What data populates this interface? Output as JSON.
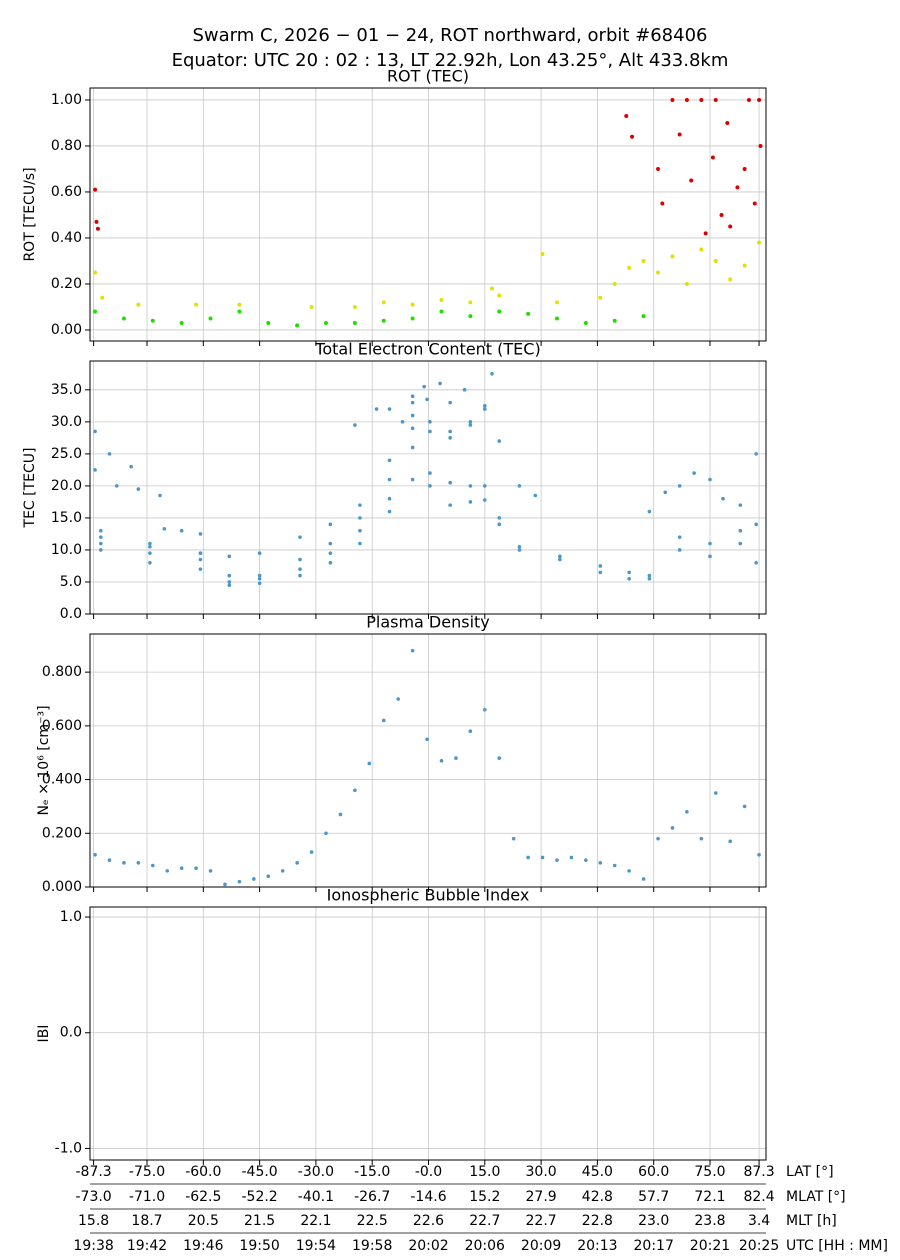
{
  "title": [
    "Swarm C,  2026 − 01 − 24,  ROT northward,  orbit #68406",
    "Equator:  UTC 20 : 02 : 13,  LT 22.92h,  Lon 43.25°,  Alt 433.8km"
  ],
  "x_axis": {
    "xlim": [
      1178.65,
      1225.48
    ],
    "xticks": [
      {
        "value": 1178.9,
        "label": "19:38"
      },
      {
        "value": 1182.6,
        "label": "19:42"
      },
      {
        "value": 1186.5,
        "label": "19:46"
      },
      {
        "value": 1190.4,
        "label": "19:50"
      },
      {
        "value": 1194.3,
        "label": "19:54"
      },
      {
        "value": 1198.2,
        "label": "19:58"
      },
      {
        "value": 1202.1,
        "label": "20:02"
      },
      {
        "value": 1206.0,
        "label": "20:06"
      },
      {
        "value": 1209.9,
        "label": "20:09"
      },
      {
        "value": 1213.8,
        "label": "20:13"
      },
      {
        "value": 1217.7,
        "label": "20:17"
      },
      {
        "value": 1221.6,
        "label": "20:21"
      },
      {
        "value": 1225.0,
        "label": "20:25"
      }
    ],
    "lat": [
      "-87.3",
      "-75.0",
      "-60.0",
      "-45.0",
      "-30.0",
      "-15.0",
      "-0.0",
      "15.0",
      "30.0",
      "45.0",
      "60.0",
      "75.0",
      "87.3"
    ],
    "mlat": [
      "-73.0",
      "-71.0",
      "-62.5",
      "-52.2",
      "-40.1",
      "-26.7",
      "-14.6",
      "15.2",
      "27.9",
      "42.8",
      "57.7",
      "72.1",
      "82.4"
    ],
    "mlt": [
      "15.8",
      "18.7",
      "20.5",
      "21.5",
      "22.1",
      "22.5",
      "22.6",
      "22.7",
      "22.7",
      "22.8",
      "23.0",
      "23.8",
      "3.4"
    ],
    "row_labels": [
      "LAT [°]",
      "MLAT [°]",
      "MLT [h]",
      "UTC [HH : MM]"
    ]
  },
  "chart_data": [
    {
      "type": "scatter",
      "title": "ROT (TEC)",
      "ylabel": "ROT [TECU/s]",
      "grid": true,
      "ylim": [
        -0.048,
        1.052
      ],
      "yticks": [
        {
          "value": 0,
          "label": "0.00"
        },
        {
          "value": 0.2,
          "label": "0.20"
        },
        {
          "value": 0.4,
          "label": "0.40"
        },
        {
          "value": 0.6,
          "label": "0.60"
        },
        {
          "value": 0.8,
          "label": "0.80"
        },
        {
          "value": 1,
          "label": "1.00"
        }
      ],
      "series": [
        {
          "color": "#22dd00",
          "x": [
            1179,
            1181,
            1183,
            1185,
            1187,
            1189,
            1191,
            1193,
            1195,
            1197,
            1199,
            1201,
            1203,
            1205,
            1207,
            1209,
            1211,
            1213,
            1215,
            1217
          ],
          "values": [
            0.08,
            0.05,
            0.04,
            0.03,
            0.05,
            0.08,
            0.03,
            0.02,
            0.03,
            0.03,
            0.04,
            0.05,
            0.08,
            0.06,
            0.08,
            0.07,
            0.05,
            0.03,
            0.04,
            0.06
          ]
        },
        {
          "color": "#e6e000",
          "x": [
            1179,
            1179.5,
            1182,
            1186,
            1189,
            1194,
            1197,
            1199,
            1201,
            1203,
            1205,
            1206.5,
            1207,
            1210,
            1211,
            1214,
            1215,
            1216,
            1217,
            1218,
            1219,
            1220,
            1221,
            1222,
            1223,
            1224,
            1225
          ],
          "values": [
            0.25,
            0.14,
            0.11,
            0.11,
            0.11,
            0.1,
            0.1,
            0.12,
            0.11,
            0.13,
            0.12,
            0.18,
            0.15,
            0.33,
            0.12,
            0.14,
            0.2,
            0.27,
            0.3,
            0.25,
            0.32,
            0.2,
            0.35,
            0.3,
            0.22,
            0.28,
            0.38
          ]
        },
        {
          "color": "#dd0000",
          "x": [
            1179,
            1179.2,
            1179.1,
            1215.8,
            1216.2,
            1218,
            1218.3,
            1219,
            1219.5,
            1220,
            1220.3,
            1221,
            1221.3,
            1221.8,
            1222,
            1222.4,
            1222.8,
            1223,
            1223.5,
            1224,
            1224.3,
            1224.7,
            1225,
            1225.1
          ],
          "values": [
            0.61,
            0.44,
            0.47,
            0.93,
            0.84,
            0.7,
            0.55,
            1.0,
            0.85,
            1.0,
            0.65,
            1.0,
            0.42,
            0.75,
            1.0,
            0.5,
            0.9,
            0.45,
            0.62,
            0.7,
            1.0,
            0.55,
            1.0,
            0.8
          ]
        }
      ]
    },
    {
      "type": "scatter",
      "title": "Total Electron Content (TEC)",
      "ylabel": "TEC [TECU]",
      "grid": true,
      "ylim": [
        0,
        39.5
      ],
      "yticks": [
        {
          "value": 0,
          "label": "0.0"
        },
        {
          "value": 5,
          "label": "5.0"
        },
        {
          "value": 10,
          "label": "10.0"
        },
        {
          "value": 15,
          "label": "15.0"
        },
        {
          "value": 20,
          "label": "20.0"
        },
        {
          "value": 25,
          "label": "25.0"
        },
        {
          "value": 30,
          "label": "30.0"
        },
        {
          "value": 35,
          "label": "35.0"
        }
      ],
      "series": [
        {
          "color": "#4a97c9",
          "x": [
            1179,
            1180,
            1181.5
          ],
          "values": [
            28.5,
            25,
            23
          ]
        },
        {
          "color": "#4a97c9",
          "x": [
            1179,
            1180.5,
            1182,
            1183.5
          ],
          "values": [
            22.5,
            20,
            19.5,
            18.5
          ]
        },
        {
          "color": "#4a97c9",
          "x": [
            1179.4,
            1182.8,
            1186.3,
            1188.3,
            1190.4,
            1193.2,
            1195.3,
            1197.35,
            1199.4,
            1201,
            1202.2,
            1203.6,
            1205,
            1206,
            1207,
            1208.4,
            1211.2,
            1214,
            1216,
            1217.4,
            1219.5,
            1221.6,
            1223.7,
            1224.8
          ],
          "values": [
            10,
            8,
            7,
            4.5,
            4.8,
            6,
            8,
            11,
            16,
            21,
            20,
            17,
            17.5,
            17.8,
            14,
            10,
            8.5,
            6.5,
            5.5,
            5.5,
            10,
            9,
            11,
            8
          ]
        },
        {
          "color": "#4a97c9",
          "x": [
            1179.4,
            1182.8,
            1186.3,
            1188.3,
            1190.4,
            1193.2,
            1195.3,
            1197.35,
            1199.4,
            1201,
            1202.2,
            1203.6,
            1205,
            1206,
            1207,
            1208.4,
            1211.2,
            1214,
            1216,
            1217.4,
            1219.5,
            1221.6,
            1223.7,
            1224.8
          ],
          "values": [
            11,
            9.5,
            8.5,
            5,
            5.5,
            7,
            9.5,
            13,
            18,
            26,
            22,
            20.5,
            20,
            20,
            15,
            10.5,
            9,
            7.5,
            6.5,
            6,
            12,
            11,
            13,
            14
          ]
        },
        {
          "color": "#4a97c9",
          "x": [
            1179.4,
            1182.8,
            1186.3,
            1188.3,
            1190.4,
            1193.2,
            1195.3,
            1197.35,
            1199.4,
            1201,
            1202.2,
            1203.6,
            1205,
            1206,
            1207,
            1208.4,
            1209.5
          ],
          "values": [
            12,
            10.5,
            9.5,
            6,
            6,
            8.5,
            11,
            15,
            21,
            29,
            28.5,
            27.5,
            30,
            32.5,
            27,
            20,
            18.5
          ]
        },
        {
          "color": "#4a97c9",
          "x": [
            1179.4,
            1182.8,
            1186.3,
            1188.3,
            1190.4,
            1193.2,
            1195.3,
            1197.35,
            1199.4,
            1201,
            1202.2,
            1203.6,
            1205,
            1206,
            1206.5
          ],
          "values": [
            13,
            11,
            9.5,
            9,
            9.5,
            12,
            14,
            17,
            24,
            31,
            30,
            28.5,
            29.5,
            32,
            37.5
          ]
        },
        {
          "color": "#4a97c9",
          "x": [
            1197,
            1198.5,
            1199.4,
            1200.3,
            1201,
            1201.8,
            1202.9
          ],
          "values": [
            29.5,
            32,
            32,
            30,
            33,
            35.5,
            36
          ]
        },
        {
          "color": "#4a97c9",
          "x": [
            1201,
            1202,
            1203.6,
            1204.6
          ],
          "values": [
            34,
            33.5,
            33,
            35
          ]
        },
        {
          "color": "#4a97c9",
          "x": [
            1183.8,
            1185,
            1186.3
          ],
          "values": [
            13.3,
            13,
            12.5
          ]
        },
        {
          "color": "#4a97c9",
          "x": [
            1217.4,
            1218.5,
            1219.5,
            1220.5,
            1221.6,
            1222.5,
            1223.7,
            1224.8
          ],
          "values": [
            16,
            19,
            20,
            22,
            21,
            18,
            17,
            25
          ]
        }
      ]
    },
    {
      "type": "scatter",
      "title": "Plasma Density",
      "ylabel": "Nₑ × 10⁶ [cm⁻³]",
      "grid": true,
      "ylim": [
        0,
        0.942
      ],
      "yticks": [
        {
          "value": 0,
          "label": "0.000"
        },
        {
          "value": 0.2,
          "label": "0.200"
        },
        {
          "value": 0.4,
          "label": "0.400"
        },
        {
          "value": 0.6,
          "label": "0.600"
        },
        {
          "value": 0.8,
          "label": "0.800"
        }
      ],
      "series": [
        {
          "color": "#4a97c9",
          "x": [
            1179,
            1180,
            1181,
            1182,
            1183,
            1184,
            1185,
            1186,
            1187,
            1188,
            1189,
            1190,
            1191,
            1192,
            1193,
            1194,
            1195,
            1196,
            1197,
            1198,
            1199,
            1200,
            1201,
            1202,
            1203,
            1204,
            1205,
            1206,
            1207,
            1208,
            1209,
            1210,
            1211,
            1212,
            1213,
            1214,
            1215,
            1216,
            1217,
            1218,
            1219,
            1220,
            1221,
            1222,
            1223,
            1224,
            1225
          ],
          "values": [
            0.12,
            0.1,
            0.09,
            0.09,
            0.08,
            0.06,
            0.07,
            0.07,
            0.06,
            0.01,
            0.02,
            0.03,
            0.04,
            0.06,
            0.09,
            0.13,
            0.2,
            0.27,
            0.36,
            0.46,
            0.62,
            0.7,
            0.88,
            0.55,
            0.47,
            0.48,
            0.58,
            0.66,
            0.48,
            0.18,
            0.11,
            0.11,
            0.1,
            0.11,
            0.1,
            0.09,
            0.08,
            0.06,
            0.03,
            0.18,
            0.22,
            0.28,
            0.18,
            0.35,
            0.17,
            0.3,
            0.12
          ]
        }
      ]
    },
    {
      "type": "scatter",
      "title": "Ionospheric Bubble Index",
      "ylabel": "IBI",
      "grid": true,
      "ylim": [
        -1.1,
        1.087
      ],
      "yticks": [
        {
          "value": -1,
          "label": "-1.0"
        },
        {
          "value": 0,
          "label": "0.0"
        },
        {
          "value": 1,
          "label": "1.0"
        }
      ],
      "series": []
    }
  ]
}
